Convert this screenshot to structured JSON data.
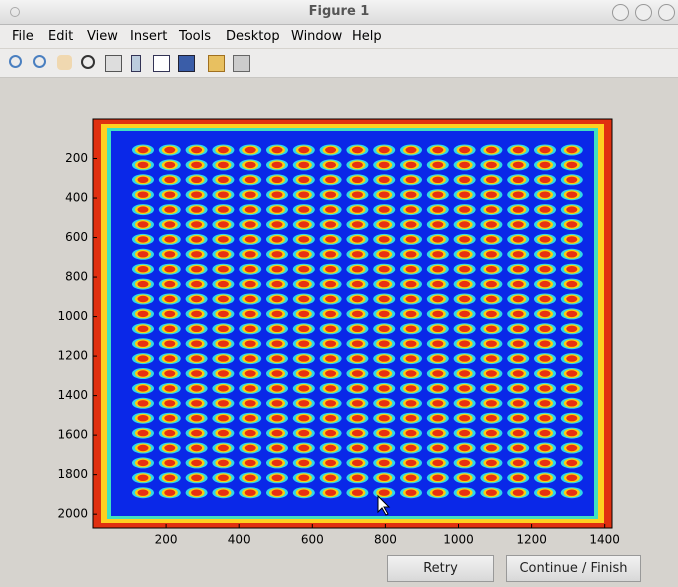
{
  "window": {
    "title": "Figure 1"
  },
  "menu": [
    "File",
    "Edit",
    "View",
    "Insert",
    "Tools",
    "Desktop",
    "Window",
    "Help"
  ],
  "chart_data": {
    "type": "image",
    "xlim": [
      0,
      1420
    ],
    "ylim": [
      0,
      2070
    ],
    "y_reversed": true,
    "xticks": [
      200,
      400,
      600,
      800,
      1000,
      1200,
      1400
    ],
    "yticks": [
      200,
      400,
      600,
      800,
      1000,
      1200,
      1400,
      1600,
      1800,
      2000
    ]
  },
  "buttons": [
    "Retry",
    "Continue / Finish"
  ]
}
